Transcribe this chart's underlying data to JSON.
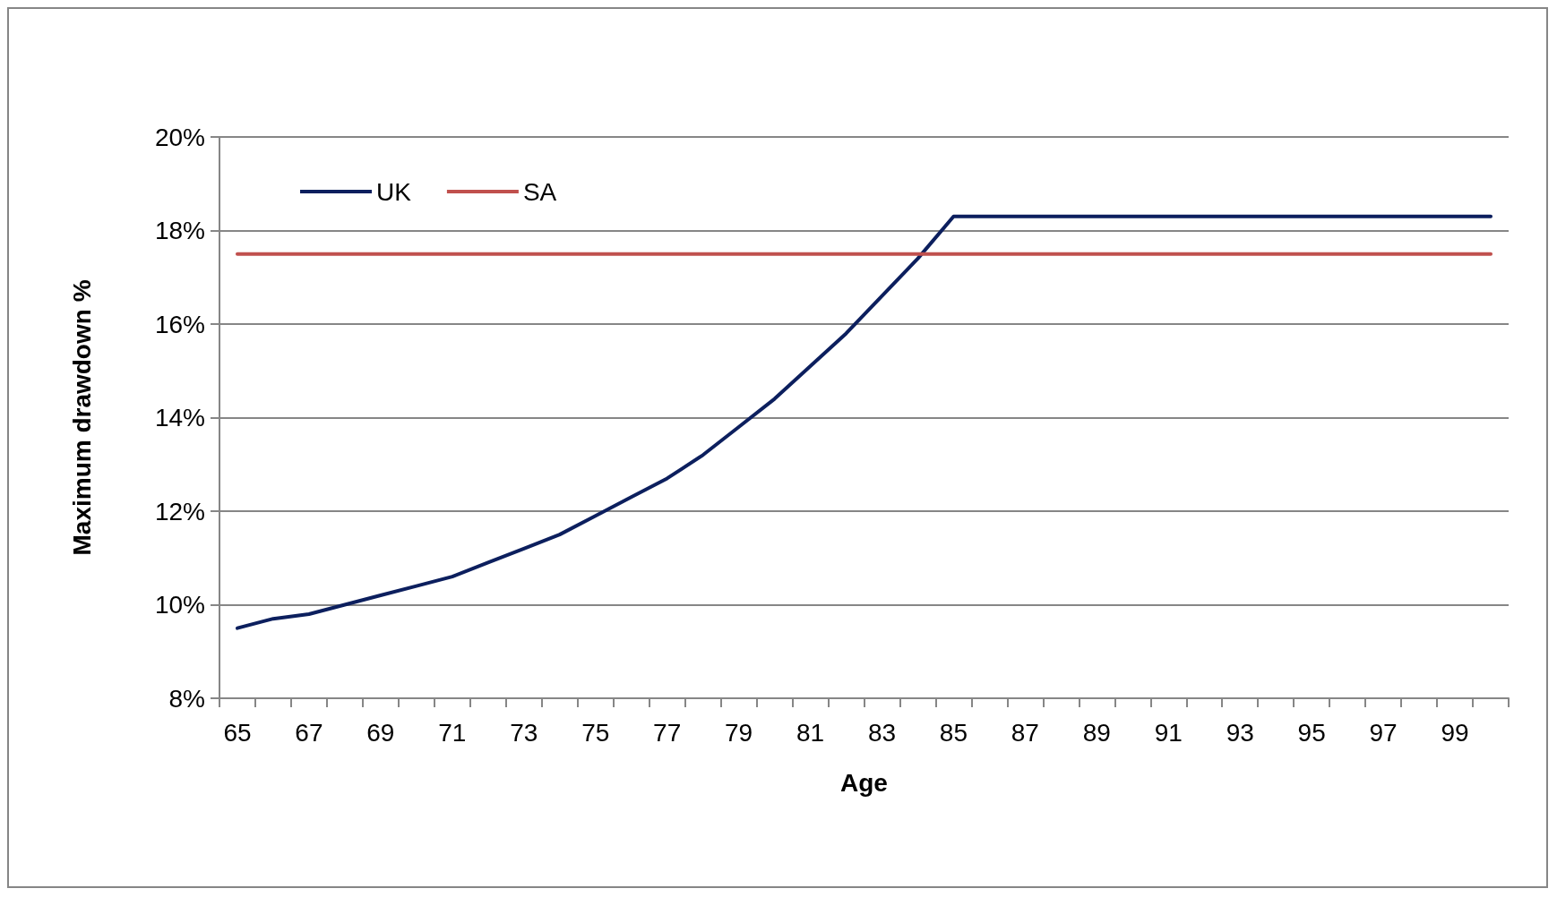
{
  "chart_data": {
    "type": "line",
    "xlabel": "Age",
    "ylabel": "Maximum drawdown %",
    "categories": [
      "65",
      null,
      "67",
      null,
      "69",
      null,
      "71",
      null,
      "73",
      null,
      "75",
      null,
      "77",
      null,
      "79",
      null,
      "81",
      null,
      "83",
      null,
      "85",
      null,
      "87",
      null,
      "89",
      null,
      "91",
      null,
      "93",
      null,
      "95",
      null,
      "97",
      null,
      "99",
      null
    ],
    "series": [
      {
        "name": "UK",
        "color": "#0c1f5e",
        "values": [
          9.5,
          9.7,
          9.8,
          10.0,
          10.2,
          10.4,
          10.6,
          10.9,
          11.2,
          11.5,
          11.9,
          12.3,
          12.7,
          13.2,
          13.8,
          14.4,
          15.1,
          15.8,
          16.6,
          17.4,
          18.3,
          18.3,
          18.3,
          18.3,
          18.3,
          18.3,
          18.3,
          18.3,
          18.3,
          18.3,
          18.3,
          18.3,
          18.3,
          18.3,
          18.3,
          18.3
        ]
      },
      {
        "name": "SA",
        "color": "#c0504d",
        "values": [
          17.5,
          17.5,
          17.5,
          17.5,
          17.5,
          17.5,
          17.5,
          17.5,
          17.5,
          17.5,
          17.5,
          17.5,
          17.5,
          17.5,
          17.5,
          17.5,
          17.5,
          17.5,
          17.5,
          17.5,
          17.5,
          17.5,
          17.5,
          17.5,
          17.5,
          17.5,
          17.5,
          17.5,
          17.5,
          17.5,
          17.5,
          17.5,
          17.5,
          17.5,
          17.5,
          17.5
        ]
      }
    ],
    "ylim": [
      8,
      20
    ],
    "yticks": [
      {
        "value": 8,
        "label": "8%"
      },
      {
        "value": 10,
        "label": "10%"
      },
      {
        "value": 12,
        "label": "12%"
      },
      {
        "value": 14,
        "label": "14%"
      },
      {
        "value": 16,
        "label": "16%"
      },
      {
        "value": 18,
        "label": "18%"
      },
      {
        "value": 20,
        "label": "20%"
      }
    ],
    "grid": "y",
    "legend": "top left",
    "marker": "none",
    "line_style": "solid"
  }
}
